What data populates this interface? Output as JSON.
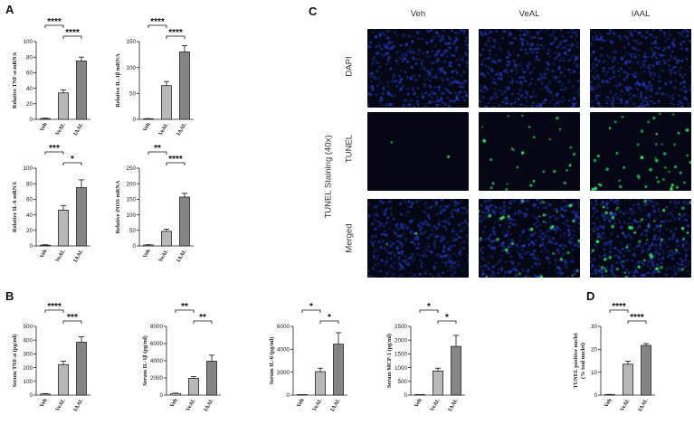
{
  "panels": {
    "A": "A",
    "B": "B",
    "C": "C",
    "D": "D"
  },
  "chart_data": [
    {
      "id": "tnf_mrna",
      "type": "bar",
      "ylabel": "Relative TNF-α mRNA",
      "categories": [
        "Veh",
        "VeAL",
        "IAAL"
      ],
      "values": [
        1,
        34,
        75
      ],
      "errors": [
        0.5,
        4,
        5
      ],
      "ylim": [
        0,
        100
      ],
      "yticks": [
        0,
        20,
        40,
        60,
        80,
        100
      ],
      "sig": [
        {
          "from": 0,
          "to": 1,
          "label": "****"
        },
        {
          "from": 1,
          "to": 2,
          "label": "****"
        }
      ]
    },
    {
      "id": "il1b_mrna",
      "type": "bar",
      "ylabel": "Relative IL-1β mRNA",
      "categories": [
        "Veh",
        "VeAL",
        "IAAL"
      ],
      "values": [
        1,
        65,
        130
      ],
      "errors": [
        0.5,
        8,
        12
      ],
      "ylim": [
        0,
        150
      ],
      "yticks": [
        0,
        50,
        100,
        150
      ],
      "sig": [
        {
          "from": 0,
          "to": 1,
          "label": "****"
        },
        {
          "from": 1,
          "to": 2,
          "label": "****"
        }
      ]
    },
    {
      "id": "il6_mrna",
      "type": "bar",
      "ylabel": "Relative IL-6 mRNA",
      "categories": [
        "Veh",
        "VeAL",
        "IAAL"
      ],
      "values": [
        1,
        46,
        75
      ],
      "errors": [
        0.5,
        6,
        10
      ],
      "ylim": [
        0,
        100
      ],
      "yticks": [
        0,
        20,
        40,
        60,
        80,
        100
      ],
      "sig": [
        {
          "from": 0,
          "to": 1,
          "label": "***"
        },
        {
          "from": 1,
          "to": 2,
          "label": "*"
        }
      ]
    },
    {
      "id": "inos_mrna",
      "type": "bar",
      "ylabel": "Relative iNOS mRNA",
      "categories": [
        "Veh",
        "VeAL",
        "IAAL"
      ],
      "values": [
        3,
        47,
        157
      ],
      "errors": [
        1,
        7,
        12
      ],
      "ylim": [
        0,
        250
      ],
      "yticks": [
        0,
        50,
        100,
        150,
        200,
        250
      ],
      "sig": [
        {
          "from": 0,
          "to": 1,
          "label": "**"
        },
        {
          "from": 1,
          "to": 2,
          "label": "****"
        }
      ]
    },
    {
      "id": "serum_tnf",
      "type": "bar",
      "ylabel": "Serum TNF-α (pg/ml)",
      "categories": [
        "Veh",
        "VeAL",
        "IAAL"
      ],
      "values": [
        8,
        222,
        385
      ],
      "errors": [
        3,
        25,
        40
      ],
      "ylim": [
        0,
        500
      ],
      "yticks": [
        0,
        100,
        200,
        300,
        400,
        500
      ],
      "sig": [
        {
          "from": 0,
          "to": 1,
          "label": "****"
        },
        {
          "from": 1,
          "to": 2,
          "label": "***"
        }
      ]
    },
    {
      "id": "serum_il1b",
      "type": "bar",
      "ylabel": "Serum IL-1β (pg/ml)",
      "categories": [
        "Veh",
        "VeAL",
        "IAAL"
      ],
      "values": [
        180,
        1950,
        3950
      ],
      "errors": [
        50,
        200,
        700
      ],
      "ylim": [
        0,
        8000
      ],
      "yticks": [
        0,
        2000,
        4000,
        6000,
        8000
      ],
      "sig": [
        {
          "from": 0,
          "to": 1,
          "label": "**"
        },
        {
          "from": 1,
          "to": 2,
          "label": "**"
        }
      ]
    },
    {
      "id": "serum_il6",
      "type": "bar",
      "ylabel": "Serum IL-6 (pg/ml)",
      "categories": [
        "Veh",
        "VeAL",
        "IAAL"
      ],
      "values": [
        0,
        2050,
        4450
      ],
      "errors": [
        0,
        300,
        1000
      ],
      "ylim": [
        0,
        6000
      ],
      "yticks": [
        0,
        2000,
        4000,
        6000
      ],
      "sig": [
        {
          "from": 0,
          "to": 1,
          "label": "*"
        },
        {
          "from": 1,
          "to": 2,
          "label": "*"
        }
      ]
    },
    {
      "id": "serum_mcp1",
      "type": "bar",
      "ylabel": "Serum MCP-1 (pg/ml)",
      "categories": [
        "Veh",
        "VeAL",
        "IAAL"
      ],
      "values": [
        0,
        880,
        1770
      ],
      "errors": [
        0,
        100,
        400
      ],
      "ylim": [
        0,
        2500
      ],
      "yticks": [
        0,
        500,
        1000,
        1500,
        2000,
        2500
      ],
      "sig": [
        {
          "from": 0,
          "to": 1,
          "label": "*"
        },
        {
          "from": 1,
          "to": 2,
          "label": "*"
        }
      ]
    },
    {
      "id": "tunel_pct",
      "type": "bar",
      "ylabel": "TUNEL positive nuclei (% toal nuclei)",
      "categories": [
        "Veh",
        "VeAL",
        "IAAL"
      ],
      "values": [
        0.2,
        13.5,
        21.7
      ],
      "errors": [
        0.1,
        1.3,
        0.8
      ],
      "ylim": [
        0,
        30
      ],
      "yticks": [
        0,
        10,
        20,
        30
      ],
      "sig": [
        {
          "from": 0,
          "to": 1,
          "label": "****"
        },
        {
          "from": 1,
          "to": 2,
          "label": "****"
        }
      ]
    }
  ],
  "micrographs": {
    "title": "TUNEL Staining (40x)",
    "columns": [
      "Veh",
      "VeAL",
      "IAAL"
    ],
    "rows": [
      "DAPI",
      "TUNEL",
      "Merged"
    ],
    "colors": {
      "dapi": "#1a2fa8",
      "tunel": "#2fd65a",
      "background": "#050814"
    }
  },
  "colors": {
    "bar_veh": "#ffffff",
    "bar_veal": "#b8b8b8",
    "bar_iaal": "#858585"
  }
}
